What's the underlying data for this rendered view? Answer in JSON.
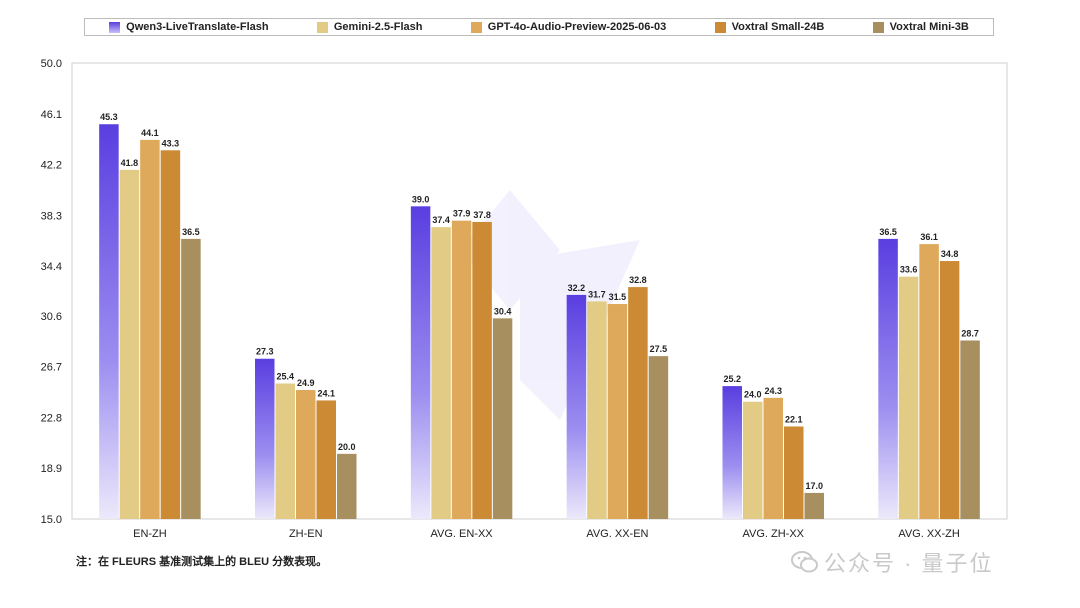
{
  "chart_data": {
    "type": "bar",
    "title": "",
    "xlabel": "",
    "ylabel": "",
    "ylim": [
      15.0,
      50.0
    ],
    "yticks": [
      "15.0",
      "18.9",
      "22.8",
      "26.7",
      "30.6",
      "34.4",
      "38.3",
      "42.2",
      "46.1",
      "50.0"
    ],
    "categories": [
      "EN-ZH",
      "ZH-EN",
      "AVG. EN-XX",
      "AVG. XX-EN",
      "AVG. ZH-XX",
      "AVG. XX-ZH"
    ],
    "series": [
      {
        "name": "Qwen3-LiveTranslate-Flash",
        "color": "#5b3fe0",
        "gradient": true,
        "values": [
          45.3,
          27.3,
          39.0,
          32.2,
          25.2,
          36.5
        ],
        "labels": [
          "45.3",
          "27.3",
          "39.0",
          "32.2",
          "25.2",
          "36.5"
        ]
      },
      {
        "name": "Gemini-2.5-Flash",
        "color": "#e2cc85",
        "values": [
          41.8,
          25.4,
          37.4,
          31.7,
          24.0,
          33.6
        ],
        "labels": [
          "41.8",
          "25.4",
          "37.4",
          "31.7",
          "24.0",
          "33.6"
        ]
      },
      {
        "name": "GPT-4o-Audio-Preview-2025-06-03",
        "color": "#dfa95c",
        "values": [
          44.1,
          24.9,
          37.9,
          31.5,
          24.3,
          36.1
        ],
        "labels": [
          "44.1",
          "24.9",
          "37.9",
          "31.5",
          "24.3",
          "36.1"
        ]
      },
      {
        "name": "Voxtral Small-24B",
        "color": "#cc8a35",
        "values": [
          43.3,
          24.1,
          37.8,
          32.8,
          22.1,
          34.8
        ],
        "labels": [
          "43.3",
          "24.1",
          "37.8",
          "32.8",
          "22.1",
          "34.8"
        ]
      },
      {
        "name": "Voxtral Mini-3B",
        "color": "#a88f60",
        "values": [
          36.5,
          20.0,
          30.4,
          27.5,
          17.0,
          28.7
        ],
        "labels": [
          "36.5",
          "20.0",
          "30.4",
          "27.5",
          "17.0",
          "28.7"
        ]
      }
    ],
    "legend_position": "top",
    "grid": false
  },
  "footnote": "注：在 FLEURS 基准测试集上的 BLEU 分数表现。",
  "watermark": {
    "text": "公众号 · 量子位",
    "icon": "wechat-icon"
  }
}
